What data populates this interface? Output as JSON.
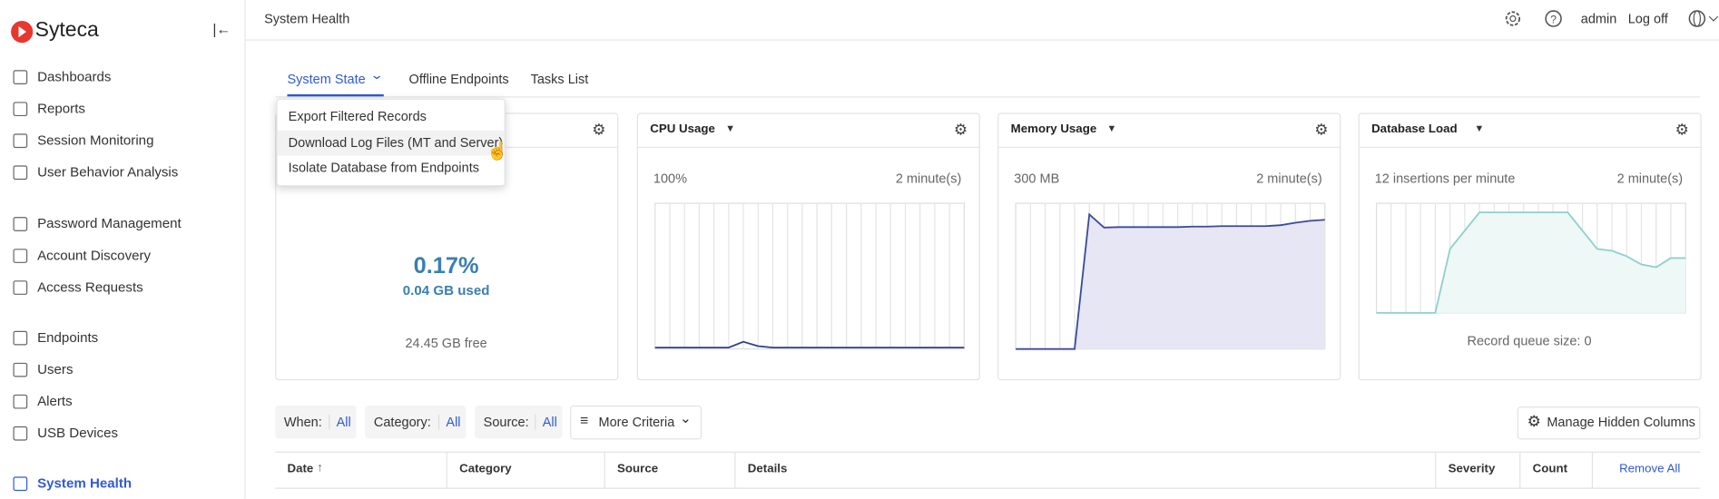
{
  "sidebar": {
    "brand": "Syteca",
    "groups": [
      [
        "Dashboards",
        "Reports",
        "Session Monitoring",
        "User Behavior Analysis"
      ],
      [
        "Password Management",
        "Account Discovery",
        "Access Requests"
      ],
      [
        "Endpoints",
        "Users",
        "Alerts",
        "USB Devices"
      ],
      [
        "System Health"
      ]
    ]
  },
  "header": {
    "title": "System Health",
    "user": "admin",
    "logoff": "Log off"
  },
  "tabs": [
    "System State",
    "Offline Endpoints",
    "Tasks List"
  ],
  "menu": [
    "Export Filtered Records",
    "Download Log Files (MT and Server)",
    "Isolate Database from Endpoints"
  ],
  "disk": {
    "percent": "0.17%",
    "used": "0.04 GB used",
    "free": "24.45 GB free"
  },
  "widgets": [
    {
      "title": "CPU Usage",
      "max_label": "100%",
      "period": "2 minute(s)",
      "ylim": [
        0,
        100
      ],
      "color": "#2f3f8f",
      "values": [
        1,
        1,
        1,
        1,
        1,
        1,
        5,
        2,
        1,
        1,
        1,
        1,
        1,
        1,
        1,
        1,
        1,
        1,
        1,
        1,
        1,
        1
      ]
    },
    {
      "title": "Memory Usage",
      "max_label": "300 MB",
      "period": "2 minute(s)",
      "ylim": [
        0,
        300
      ],
      "color": "#3b4a9a",
      "values": [
        0,
        0,
        0,
        0,
        0,
        277,
        250,
        251,
        251,
        251,
        251,
        251,
        252,
        252,
        253,
        253,
        253,
        253,
        255,
        260,
        264,
        266
      ]
    },
    {
      "title": "Database Load",
      "max_label": "12 insertions per minute",
      "period": "2 minute(s)",
      "ylim": [
        0,
        12
      ],
      "color": "#8fd0cc",
      "values": [
        0,
        0,
        0,
        0,
        0,
        7,
        9,
        11,
        11,
        11,
        11,
        11,
        11,
        11,
        9,
        7,
        6.8,
        6.2,
        5.3,
        5,
        6,
        6
      ],
      "footer": "Record queue size: 0"
    }
  ],
  "filters": [
    {
      "label": "When:",
      "value": "All"
    },
    {
      "label": "Category:",
      "value": "All"
    },
    {
      "label": "Source:",
      "value": "All"
    }
  ],
  "more": "More Criteria",
  "manage": "Manage Hidden Columns",
  "table": {
    "columns": [
      "Date",
      "Category",
      "Source",
      "Details",
      "Severity",
      "Count"
    ],
    "action": "Remove All"
  }
}
